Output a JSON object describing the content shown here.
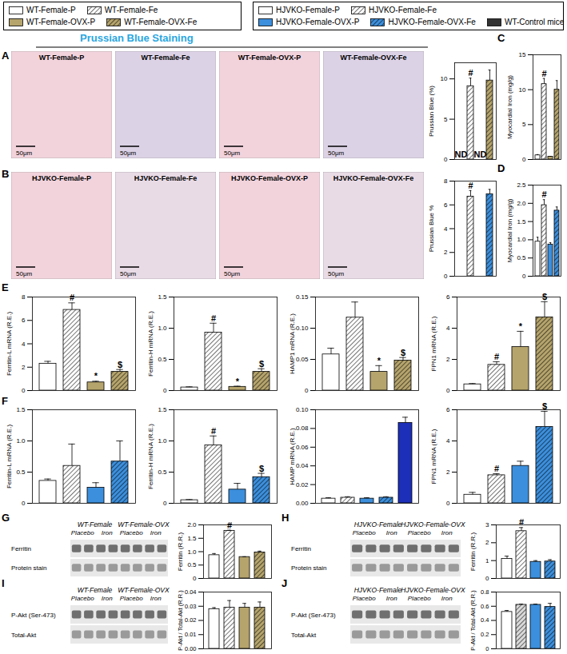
{
  "figure": {
    "title": "Prussian Blue Staining",
    "legends": [
      {
        "items": [
          {
            "name": "WT-Female-P",
            "color": "#ffffff"
          },
          {
            "name": "WT-Female-Fe",
            "color": "#ffffff"
          },
          {
            "name": "WT-Female-OVX-P",
            "color": "#b5a46c"
          },
          {
            "name": "WT-Female-OVX-Fe",
            "color": "#b5a46c"
          }
        ]
      },
      {
        "items": [
          {
            "name": "HJVKO-Female-P",
            "color": "#ffffff"
          },
          {
            "name": "HJVKO-Female-Fe",
            "color": "#ffffff"
          },
          {
            "name": "HJVKO-Female-OVX-P",
            "color": "#3c8fdc"
          },
          {
            "name": "HJVKO-Female-OVX-Fe",
            "color": "#3c8fdc"
          },
          {
            "name": "WT-Control mice",
            "color": "#333333"
          }
        ]
      }
    ],
    "panels": [
      {
        "letter": "A",
        "images": [
          {
            "label": "WT-Female-P",
            "scale_bar": "50μm"
          },
          {
            "label": "WT-Female-Fe",
            "scale_bar": "50μm"
          },
          {
            "label": "WT-Female-OVX-P",
            "scale_bar": "50μm"
          },
          {
            "label": "WT-Female-OVX-Fe",
            "scale_bar": "50μm"
          }
        ]
      },
      {
        "letter": "B",
        "images": [
          {
            "label": "HJVKO-Female-P",
            "scale_bar": "50μm"
          },
          {
            "label": "HJVKO-Female-Fe",
            "scale_bar": "50μm"
          },
          {
            "label": "HJVKO-Female-OVX-P",
            "scale_bar": "50μm"
          },
          {
            "label": "HJVKO-Female-OVX-Fe",
            "scale_bar": "50μm"
          }
        ]
      },
      {
        "letter": "C"
      },
      {
        "letter": "D"
      },
      {
        "letter": "E"
      },
      {
        "letter": "F"
      },
      {
        "letter": "G",
        "blot": {
          "groups": [
            "WT-Female",
            "WT-Female-OVX"
          ],
          "lanes": [
            "Placebo",
            "Iron",
            "Placebo",
            "Iron"
          ],
          "rows": [
            "Ferritin",
            "Protein stain"
          ]
        }
      },
      {
        "letter": "H",
        "blot": {
          "groups": [
            "HJVKO-Female",
            "HJVKO-Female-OVX"
          ],
          "lanes": [
            "Placebo",
            "Iron",
            "Placebo",
            "Iron"
          ],
          "rows": [
            "Ferritin",
            "Protein stain"
          ]
        }
      },
      {
        "letter": "I",
        "blot": {
          "groups": [
            "WT-Female",
            "WT-Female-OVX"
          ],
          "lanes": [
            "Placebo",
            "Iron",
            "Placebo",
            "Iron"
          ],
          "rows": [
            "P-Akt (Ser-473)",
            "Total-Akt"
          ]
        }
      },
      {
        "letter": "J",
        "blot": {
          "groups": [
            "HJVKO-Female",
            "HJVKO-Female-OVX"
          ],
          "lanes": [
            "Placebo",
            "Iron",
            "Placebo",
            "Iron"
          ],
          "rows": [
            "P-Akt (Ser-473)",
            "Total-Akt"
          ]
        }
      }
    ]
  },
  "chart_data": [
    {
      "type": "bar",
      "ylabel": "Prussian Blue (%)",
      "categories": [
        null,
        null,
        null,
        null
      ],
      "values": [
        null,
        9.1,
        null,
        9.8
      ],
      "errors": [
        null,
        1.0,
        null,
        1.3
      ],
      "colors": [
        "#ffffff",
        "#ffffff",
        "#b5a46c",
        "#b5a46c"
      ],
      "annotations": [
        "ND",
        "#",
        "ND",
        null
      ],
      "ylim": [
        0,
        12
      ],
      "yticks": [
        0,
        5,
        10
      ],
      "tick_labels": "y"
    },
    {
      "type": "bar",
      "ylabel": "Myocardial Iron (mg/g)",
      "categories": [
        null,
        null,
        null,
        null
      ],
      "values": [
        0.6,
        10.8,
        0.4,
        10.0
      ],
      "errors": [
        0.1,
        0.8,
        0.05,
        1.3
      ],
      "colors": [
        "#ffffff",
        "#ffffff",
        "#b5a46c",
        "#b5a46c"
      ],
      "annotations": [
        null,
        "#",
        null,
        null
      ],
      "ylim": [
        0,
        15
      ],
      "yticks": [
        0,
        5,
        10,
        15
      ],
      "tick_labels": "y"
    },
    {
      "type": "bar",
      "ylabel": "Prussian Blue %",
      "categories": [
        null,
        null,
        null,
        null
      ],
      "values": [
        null,
        6.7,
        null,
        6.9
      ],
      "errors": [
        null,
        0.5,
        null,
        0.4
      ],
      "colors": [
        "#ffffff",
        "#ffffff",
        "#3c8fdc",
        "#3c8fdc"
      ],
      "annotations": [
        null,
        "#",
        null,
        null
      ],
      "ylim": [
        0,
        8
      ],
      "yticks": [
        0,
        2,
        4,
        6,
        8
      ],
      "tick_labels": "y"
    },
    {
      "type": "bar",
      "ylabel": "Myocardial Iron (mg/g)",
      "categories": [
        null,
        null,
        null,
        null
      ],
      "values": [
        0.95,
        1.95,
        0.87,
        1.8
      ],
      "errors": [
        0.12,
        0.15,
        0.05,
        0.1
      ],
      "colors": [
        "#ffffff",
        "#ffffff",
        "#3c8fdc",
        "#3c8fdc"
      ],
      "annotations": [
        null,
        "#",
        null,
        null
      ],
      "ylim": [
        0,
        2.5
      ],
      "yticks": [
        0,
        0.5,
        {
          "value": 1,
          "label": "1.0"
        },
        1.5,
        {
          "value": 2,
          "label": "2.0"
        },
        2.5
      ],
      "tick_labels": "y"
    },
    {
      "type": "bar",
      "ylabel": "Ferritin-L mRNA (R.E.)",
      "categories": [
        null,
        null,
        null,
        null
      ],
      "values": [
        2.3,
        6.9,
        0.7,
        1.6
      ],
      "errors": [
        0.2,
        0.6,
        0.1,
        0.2
      ],
      "colors": [
        "#ffffff",
        "#ffffff",
        "#b5a46c",
        "#b5a46c"
      ],
      "annotations": [
        null,
        "#",
        "*",
        "$"
      ],
      "ylim": [
        0,
        8
      ],
      "yticks": [
        0,
        2,
        4,
        6,
        8
      ],
      "tick_labels": "y"
    },
    {
      "type": "bar",
      "ylabel": "Ferritin-H mRNA (R.E.)",
      "categories": [
        null,
        null,
        null,
        null
      ],
      "values": [
        0.05,
        0.93,
        0.06,
        0.3
      ],
      "errors": [
        0.01,
        0.15,
        0.01,
        0.05
      ],
      "colors": [
        "#ffffff",
        "#ffffff",
        "#b5a46c",
        "#b5a46c"
      ],
      "annotations": [
        null,
        "#",
        "*",
        "$"
      ],
      "ylim": [
        0,
        1.5
      ],
      "yticks": [
        0,
        0.5,
        {
          "value": 1,
          "label": "1.0"
        },
        1.5
      ],
      "tick_labels": "y"
    },
    {
      "type": "bar",
      "ylabel": "HAMP1 mRNA (R.E.)",
      "categories": [
        null,
        null,
        null,
        null
      ],
      "values": [
        0.058,
        0.117,
        0.03,
        0.048
      ],
      "errors": [
        0.01,
        0.025,
        0.01,
        0.005
      ],
      "colors": [
        "#ffffff",
        "#ffffff",
        "#b5a46c",
        "#b5a46c"
      ],
      "annotations": [
        null,
        null,
        "*",
        "$"
      ],
      "ylim": [
        0,
        0.15
      ],
      "yticks": [
        0,
        0.05,
        {
          "value": 0.1,
          "label": "0.10"
        },
        0.15
      ],
      "tick_labels": "y"
    },
    {
      "type": "bar",
      "ylabel": "FPN1 mRNA (R.E.)",
      "categories": [
        null,
        null,
        null,
        null
      ],
      "values": [
        0.4,
        1.65,
        2.8,
        4.7
      ],
      "errors": [
        0.05,
        0.2,
        1.0,
        1.0
      ],
      "colors": [
        "#ffffff",
        "#ffffff",
        "#b5a46c",
        "#b5a46c"
      ],
      "annotations": [
        null,
        "#",
        "*",
        "$"
      ],
      "ylim": [
        0,
        6
      ],
      "yticks": [
        0,
        2,
        4,
        6
      ],
      "tick_labels": "y"
    },
    {
      "type": "bar",
      "ylabel": "Ferritin-L mRNA (R.E.)",
      "categories": [
        null,
        null,
        null,
        null
      ],
      "values": [
        0.36,
        0.6,
        0.25,
        0.67
      ],
      "errors": [
        0.03,
        0.35,
        0.08,
        0.33
      ],
      "colors": [
        "#ffffff",
        "#ffffff",
        "#3c8fdc",
        "#3c8fdc"
      ],
      "ylim": [
        0,
        1.5
      ],
      "yticks": [
        0,
        0.5,
        {
          "value": 1,
          "label": "1.0"
        },
        1.5
      ],
      "tick_labels": "y"
    },
    {
      "type": "bar",
      "ylabel": "Ferritin-H mRNA (R.E.)",
      "categories": [
        null,
        null,
        null,
        null
      ],
      "values": [
        0.05,
        0.93,
        0.22,
        0.42
      ],
      "errors": [
        0.01,
        0.15,
        0.1,
        0.06
      ],
      "colors": [
        "#ffffff",
        "#ffffff",
        "#3c8fdc",
        "#3c8fdc"
      ],
      "annotations": [
        null,
        "#",
        null,
        "$"
      ],
      "ylim": [
        0,
        1.5
      ],
      "yticks": [
        0,
        0.5,
        {
          "value": 1,
          "label": "1.0"
        },
        1.5
      ],
      "tick_labels": "y"
    },
    {
      "type": "bar",
      "ylabel": "HAMP mRNA (R.E.)",
      "categories": [
        null,
        null,
        null,
        null,
        null
      ],
      "values": [
        0.005,
        0.006,
        0.005,
        0.006,
        0.086
      ],
      "errors": [
        0.001,
        0.001,
        0.001,
        0.001,
        0.006
      ],
      "colors": [
        "#ffffff",
        "#ffffff",
        "#3c8fdc",
        "#3c8fdc",
        "#1c2fb8"
      ],
      "ylim": [
        0,
        0.1
      ],
      "yticks": [
        {
          "value": 0,
          "label": "0.00"
        },
        0.02,
        0.04,
        0.06,
        0.08,
        {
          "value": 0.1,
          "label": "0.10"
        }
      ],
      "tick_labels": "y"
    },
    {
      "type": "bar",
      "ylabel": "FPN1 mRNA (R.E.)",
      "categories": [
        null,
        null,
        null,
        null
      ],
      "values": [
        0.55,
        1.8,
        2.4,
        4.9
      ],
      "errors": [
        0.15,
        0.1,
        0.3,
        1.0
      ],
      "colors": [
        "#ffffff",
        "#ffffff",
        "#3c8fdc",
        "#3c8fdc"
      ],
      "annotations": [
        null,
        "#",
        null,
        "$"
      ],
      "ylim": [
        0,
        6
      ],
      "yticks": [
        0,
        2,
        4,
        6
      ],
      "tick_labels": "y"
    },
    {
      "type": "bar",
      "ylabel": "Ferritin (R.R.)",
      "categories": [
        null,
        null,
        null,
        null
      ],
      "values": [
        0.87,
        1.78,
        0.8,
        0.97
      ],
      "errors": [
        0.06,
        0.02,
        0.01,
        0.05
      ],
      "colors": [
        "#ffffff",
        "#ffffff",
        "#b5a46c",
        "#b5a46c"
      ],
      "annotations": [
        null,
        "#",
        null,
        null
      ],
      "ylim": [
        0,
        2
      ],
      "yticks": [
        0,
        0.5,
        {
          "value": 1,
          "label": "1.0"
        },
        1.5,
        {
          "value": 2,
          "label": "2.0"
        }
      ],
      "tick_labels": "y"
    },
    {
      "type": "bar",
      "ylabel": "Ferritin (R.R.)",
      "categories": [
        null,
        null,
        null,
        null
      ],
      "values": [
        1.1,
        2.65,
        0.93,
        0.95
      ],
      "errors": [
        0.15,
        0.2,
        0.07,
        0.1
      ],
      "colors": [
        "#ffffff",
        "#ffffff",
        "#3c8fdc",
        "#3c8fdc"
      ],
      "annotations": [
        null,
        "#",
        null,
        null
      ],
      "ylim": [
        0,
        3
      ],
      "yticks": [
        0,
        1,
        2,
        3
      ],
      "tick_labels": "y"
    },
    {
      "type": "bar",
      "ylabel": "P-Akt / Total-Akt (R.R.)",
      "categories": [
        null,
        null,
        null,
        null
      ],
      "values": [
        0.028,
        0.029,
        0.029,
        0.029
      ],
      "errors": [
        0.001,
        0.005,
        0.003,
        0.004
      ],
      "colors": [
        "#ffffff",
        "#ffffff",
        "#b5a46c",
        "#b5a46c"
      ],
      "ylim": [
        0,
        0.04
      ],
      "yticks": [
        {
          "value": 0,
          "label": "0.00"
        },
        0.01,
        0.02,
        0.03,
        0.04
      ],
      "tick_labels": "y"
    },
    {
      "type": "bar",
      "ylabel": "P-Akt / Total-Akt (R.R.)",
      "categories": [
        null,
        null,
        null,
        null
      ],
      "values": [
        0.52,
        0.62,
        0.62,
        0.59
      ],
      "errors": [
        0.02,
        0.01,
        0.01,
        0.05
      ],
      "colors": [
        "#ffffff",
        "#d9d9d9",
        "#3c8fdc",
        "#3c8fdc"
      ],
      "ylim": [
        0,
        0.8
      ],
      "yticks": [
        0,
        0.2,
        0.4,
        0.6,
        0.8
      ],
      "tick_labels": "y"
    }
  ]
}
